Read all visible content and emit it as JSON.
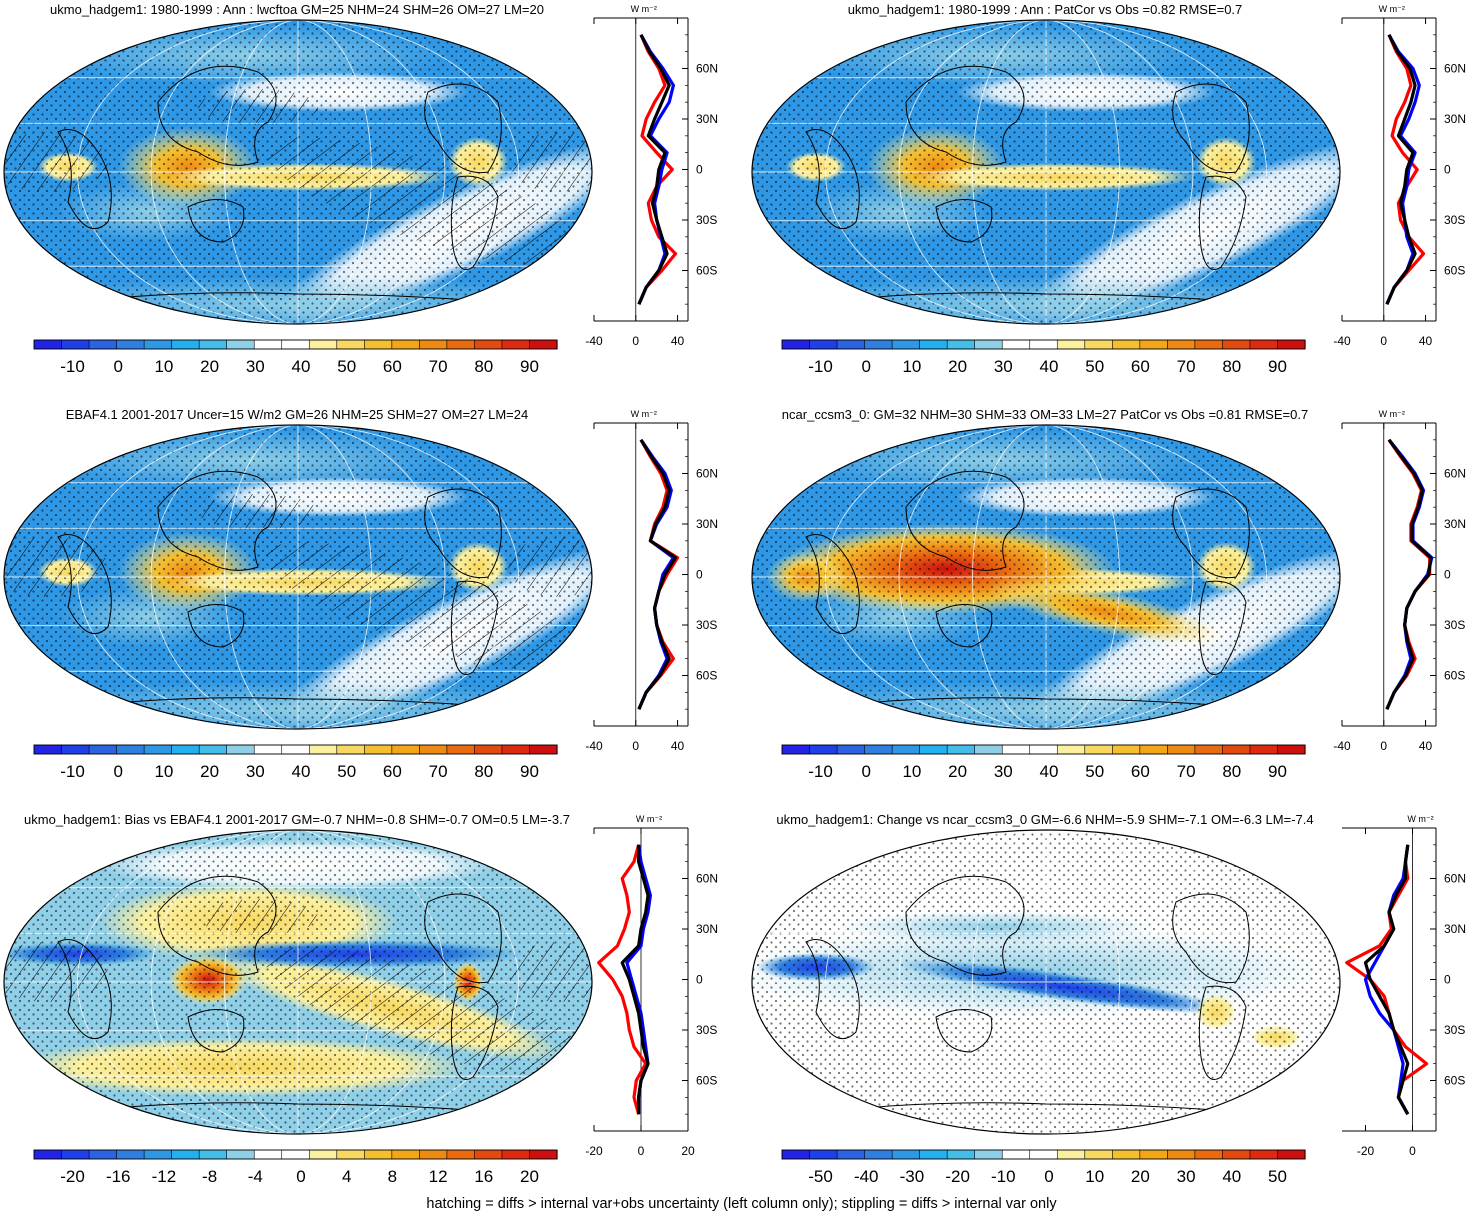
{
  "footnote": "hatching = diffs > internal var+obs uncertainty (left column only); stippling = diffs > internal var only",
  "colors": {
    "scale_main": [
      "#2323e6",
      "#1f3fe8",
      "#2b63e0",
      "#2f7fe0",
      "#2f98e6",
      "#23b0ee",
      "#44bde8",
      "#8fcfe8",
      "#ffffff",
      "#ffffff",
      "#fbf0a0",
      "#f8d860",
      "#f5c030",
      "#f2a618",
      "#ee8a12",
      "#ea6a10",
      "#e44a10",
      "#dd2a10",
      "#cc1010"
    ],
    "line_red": "#ff0000",
    "line_blue": "#0000ff",
    "line_black": "#000000"
  },
  "chart_data": [
    {
      "type": "heatmap",
      "title": "ukmo_hadgem1: 1980-1999 : Ann : lwcftoa GM=25 NHM=24 SHM=26 OM=27 LM=20",
      "colorbar_labels": [
        "-10",
        "0",
        "10",
        "20",
        "30",
        "40",
        "50",
        "60",
        "70",
        "80",
        "90"
      ],
      "hatched": true,
      "profile": {
        "xticks": [
          "-40",
          "0",
          "40"
        ],
        "xlim": [
          -40,
          50
        ],
        "yticks": [
          "60N",
          "30N",
          "0",
          "30S",
          "60S"
        ],
        "unit": "W m⁻²",
        "lat": [
          80,
          70,
          60,
          50,
          40,
          30,
          20,
          10,
          0,
          -10,
          -20,
          -30,
          -40,
          -50,
          -60,
          -70,
          -80
        ],
        "series": [
          {
            "name": "",
            "color": "line_red",
            "values": [
              5,
              12,
              22,
              28,
              18,
              10,
              6,
              20,
              35,
              20,
              12,
              15,
              22,
              38,
              25,
              10,
              3
            ]
          },
          {
            "name": "",
            "color": "line_blue",
            "values": [
              5,
              14,
              26,
              36,
              32,
              22,
              14,
              30,
              25,
              22,
              18,
              20,
              24,
              28,
              22,
              10,
              3
            ]
          },
          {
            "name": "",
            "color": "line_black",
            "values": [
              5,
              13,
              24,
              32,
              25,
              18,
              12,
              28,
              22,
              20,
              16,
              20,
              25,
              30,
              22,
              10,
              3
            ]
          }
        ]
      }
    },
    {
      "type": "heatmap",
      "title": "ukmo_hadgem1: 1980-1999 : Ann : PatCor vs Obs =0.82 RMSE=0.7",
      "colorbar_labels": [
        "-10",
        "0",
        "10",
        "20",
        "30",
        "40",
        "50",
        "60",
        "70",
        "80",
        "90"
      ],
      "hatched": false,
      "profile": {
        "xticks": [
          "-40",
          "0",
          "40"
        ],
        "xlim": [
          -40,
          50
        ],
        "yticks": [
          "60N",
          "30N",
          "0",
          "30S",
          "60S"
        ],
        "unit": "W m⁻²",
        "lat": [
          80,
          70,
          60,
          50,
          40,
          30,
          20,
          10,
          0,
          -10,
          -20,
          -30,
          -40,
          -50,
          -60,
          -70,
          -80
        ],
        "series": [
          {
            "name": "",
            "color": "line_red",
            "values": [
              5,
              12,
              22,
              26,
              20,
              12,
              8,
              18,
              32,
              22,
              14,
              16,
              24,
              38,
              24,
              10,
              3
            ]
          },
          {
            "name": "",
            "color": "line_blue",
            "values": [
              5,
              14,
              28,
              34,
              30,
              24,
              16,
              30,
              24,
              22,
              18,
              20,
              22,
              28,
              22,
              10,
              3
            ]
          },
          {
            "name": "",
            "color": "line_black",
            "values": [
              5,
              13,
              25,
              30,
              26,
              20,
              14,
              28,
              22,
              20,
              16,
              20,
              24,
              30,
              22,
              10,
              3
            ]
          }
        ]
      }
    },
    {
      "type": "heatmap",
      "title": "EBAF4.1 2001-2017 Uncer=15 W/m2 GM=26 NHM=25 SHM=27 OM=27 LM=24",
      "colorbar_labels": [
        "-10",
        "0",
        "10",
        "20",
        "30",
        "40",
        "50",
        "60",
        "70",
        "80",
        "90"
      ],
      "hatched": true,
      "profile": {
        "xticks": [
          "-40",
          "0",
          "40"
        ],
        "xlim": [
          -40,
          50
        ],
        "yticks": [
          "60N",
          "30N",
          "0",
          "30S",
          "60S"
        ],
        "unit": "W m⁻²",
        "lat": [
          80,
          70,
          60,
          50,
          40,
          30,
          20,
          10,
          0,
          -10,
          -20,
          -30,
          -40,
          -50,
          -60,
          -70,
          -80
        ],
        "series": [
          {
            "name": "",
            "color": "line_red",
            "values": [
              5,
              14,
              24,
              30,
              26,
              18,
              14,
              40,
              30,
              22,
              18,
              20,
              26,
              36,
              24,
              10,
              3
            ]
          },
          {
            "name": "",
            "color": "line_blue",
            "values": [
              5,
              16,
              28,
              34,
              30,
              20,
              14,
              36,
              26,
              22,
              18,
              20,
              24,
              30,
              22,
              10,
              3
            ]
          },
          {
            "name": "",
            "color": "line_black",
            "values": [
              5,
              15,
              26,
              32,
              28,
              19,
              14,
              38,
              28,
              22,
              18,
              20,
              25,
              32,
              23,
              10,
              3
            ]
          }
        ]
      }
    },
    {
      "type": "heatmap",
      "title": "ncar_ccsm3_0: GM=32 NHM=30 SHM=33 OM=33 LM=27 PatCor vs Obs =0.81 RMSE=0.7",
      "colorbar_labels": [
        "-10",
        "0",
        "10",
        "20",
        "30",
        "40",
        "50",
        "60",
        "70",
        "80",
        "90"
      ],
      "hatched": false,
      "profile": {
        "xticks": [
          "-40",
          "0",
          "40"
        ],
        "xlim": [
          -40,
          50
        ],
        "yticks": [
          "60N",
          "30N",
          "0",
          "30S",
          "60S"
        ],
        "unit": "W m⁻²",
        "lat": [
          80,
          70,
          60,
          50,
          40,
          30,
          20,
          10,
          0,
          -10,
          -20,
          -30,
          -40,
          -50,
          -60,
          -70,
          -80
        ],
        "series": [
          {
            "name": "",
            "color": "line_red",
            "values": [
              5,
              16,
              28,
              36,
              32,
              26,
              26,
              44,
              44,
              30,
              22,
              20,
              24,
              30,
              22,
              10,
              3
            ]
          },
          {
            "name": "",
            "color": "line_blue",
            "values": [
              5,
              18,
              30,
              38,
              34,
              28,
              28,
              46,
              42,
              30,
              22,
              20,
              22,
              26,
              20,
              10,
              3
            ]
          },
          {
            "name": "",
            "color": "line_black",
            "values": [
              5,
              17,
              29,
              37,
              33,
              27,
              27,
              45,
              43,
              30,
              22,
              20,
              23,
              28,
              21,
              10,
              3
            ]
          }
        ]
      }
    },
    {
      "type": "heatmap",
      "title": "ukmo_hadgem1: Bias vs EBAF4.1 2001-2017 GM=-0.7 NHM=-0.8 SHM=-0.7 OM=0.5 LM=-3.7",
      "colorbar_labels": [
        "-20",
        "-16",
        "-12",
        "-8",
        "-4",
        "0",
        "4",
        "8",
        "12",
        "16",
        "20"
      ],
      "hatched": true,
      "profile": {
        "xticks": [
          "-20",
          "0",
          "20"
        ],
        "xlim": [
          -20,
          20
        ],
        "yticks": [
          "60N",
          "30N",
          "0",
          "30S",
          "60S"
        ],
        "unit": "W m⁻²",
        "lat": [
          80,
          70,
          60,
          50,
          40,
          30,
          20,
          10,
          0,
          -10,
          -20,
          -30,
          -40,
          -50,
          -60,
          -70,
          -80
        ],
        "series": [
          {
            "name": "",
            "color": "line_red",
            "values": [
              -1,
              -3,
              -8,
              -6,
              -5,
              -7,
              -10,
              -18,
              -12,
              -8,
              -6,
              -5,
              -3,
              2,
              -2,
              -3,
              -1
            ]
          },
          {
            "name": "",
            "color": "line_blue",
            "values": [
              -1,
              0,
              2,
              4,
              3,
              1,
              0,
              -6,
              -4,
              -2,
              0,
              1,
              2,
              3,
              0,
              -1,
              -1
            ]
          },
          {
            "name": "",
            "color": "line_black",
            "values": [
              -1,
              -1,
              1,
              3,
              2,
              0,
              -1,
              -8,
              -5,
              -3,
              -1,
              0,
              1,
              3,
              0,
              -1,
              -1
            ]
          }
        ]
      }
    },
    {
      "type": "heatmap",
      "title": "ukmo_hadgem1: Change vs ncar_ccsm3_0 GM=-6.6 NHM=-5.9 SHM=-7.1 OM=-6.3 LM=-7.4",
      "colorbar_labels": [
        "-50",
        "-40",
        "-30",
        "-20",
        "-10",
        "0",
        "10",
        "20",
        "30",
        "40",
        "50"
      ],
      "hatched": false,
      "profile": {
        "xticks": [
          "-20",
          "0"
        ],
        "xlim": [
          -30,
          10
        ],
        "yticks": [
          "60N",
          "30N",
          "0",
          "30S",
          "60S"
        ],
        "unit": "W m⁻²",
        "lat": [
          80,
          70,
          60,
          50,
          40,
          30,
          20,
          10,
          0,
          -10,
          -20,
          -30,
          -40,
          -50,
          -60,
          -70,
          -80
        ],
        "series": [
          {
            "name": "",
            "color": "line_red",
            "values": [
              -2,
              -3,
              -2,
              -6,
              -10,
              -9,
              -14,
              -28,
              -18,
              -12,
              -10,
              -8,
              -3,
              6,
              -4,
              -6,
              -2
            ]
          },
          {
            "name": "",
            "color": "line_blue",
            "values": [
              -2,
              -3,
              -4,
              -8,
              -10,
              -8,
              -12,
              -16,
              -20,
              -18,
              -14,
              -8,
              -6,
              -4,
              -5,
              -6,
              -2
            ]
          },
          {
            "name": "",
            "color": "line_black",
            "values": [
              -2,
              -3,
              -3,
              -7,
              -10,
              -8,
              -12,
              -20,
              -18,
              -14,
              -10,
              -8,
              -5,
              -2,
              -4,
              -6,
              -2
            ]
          }
        ]
      }
    }
  ]
}
